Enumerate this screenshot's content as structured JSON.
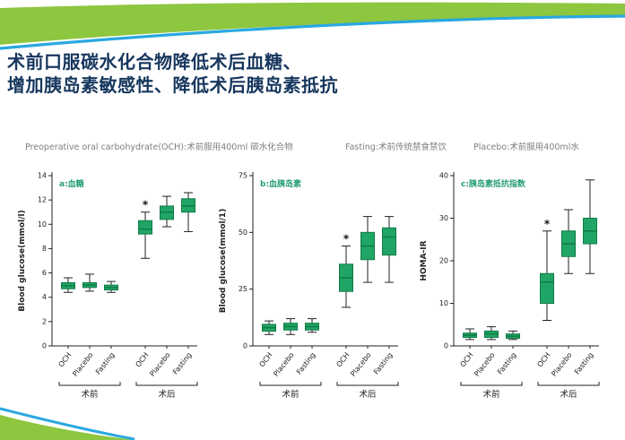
{
  "slide": {
    "title_line1": "术前口服碳水化合物降低术后血糖、",
    "title_line2": "增加胰岛素敏感性、降低术后胰岛素抵抗",
    "legend": {
      "och": "Preoperative oral carbohydrate(OCH):术前服用400ml 碳水化合物",
      "fasting": "Fasting:术前传统禁食禁饮",
      "placebo": "Placebo:术前服用400ml水"
    }
  },
  "colors": {
    "accent_green": "#8dc63f",
    "accent_blue": "#29a8e0",
    "title": "#17375e",
    "legend_text": "#7f7f7f",
    "box_fill": "#21a566",
    "box_stroke": "#0e7c44",
    "chart_label": "#2a9d7a",
    "axis": "#222222"
  },
  "chart_data": [
    {
      "type": "box",
      "label": "a:血糖",
      "ylabel": "Blood glucose(mmol/l)",
      "ylim": [
        0,
        14
      ],
      "yticks": [
        0,
        2,
        4,
        6,
        8,
        10,
        12,
        14
      ],
      "categories": [
        "OCH",
        "Placebo",
        "Fasting",
        "OCH",
        "Placebo",
        "Fasting"
      ],
      "groups": [
        {
          "label": "术前",
          "span": [
            0,
            2
          ]
        },
        {
          "label": "术后",
          "span": [
            3,
            5
          ]
        }
      ],
      "boxes": [
        {
          "low": 4.4,
          "q1": 4.7,
          "med": 4.95,
          "q3": 5.2,
          "high": 5.6
        },
        {
          "low": 4.5,
          "q1": 4.8,
          "med": 5.0,
          "q3": 5.2,
          "high": 5.9
        },
        {
          "low": 4.4,
          "q1": 4.6,
          "med": 4.8,
          "q3": 5.0,
          "high": 5.3
        },
        {
          "low": 7.2,
          "q1": 9.2,
          "med": 9.6,
          "q3": 10.3,
          "high": 11.0
        },
        {
          "low": 9.8,
          "q1": 10.4,
          "med": 11.0,
          "q3": 11.5,
          "high": 12.3
        },
        {
          "low": 9.4,
          "q1": 11.0,
          "med": 11.5,
          "q3": 12.1,
          "high": 12.6
        }
      ],
      "star": "*",
      "star_index": 3
    },
    {
      "type": "box",
      "label": "b:血胰岛素",
      "ylabel": "Blood glucose(mmol/1)",
      "ylim": [
        0,
        75
      ],
      "yticks": [
        0,
        25,
        50,
        75
      ],
      "categories": [
        "OCH",
        "Placebo",
        "Fasting",
        "OCH",
        "Placebo",
        "Fasting"
      ],
      "groups": [
        {
          "label": "术前",
          "span": [
            0,
            2
          ]
        },
        {
          "label": "术后",
          "span": [
            3,
            5
          ]
        }
      ],
      "boxes": [
        {
          "low": 5,
          "q1": 6.5,
          "med": 8,
          "q3": 9.5,
          "high": 11
        },
        {
          "low": 5,
          "q1": 7,
          "med": 8.5,
          "q3": 10,
          "high": 12
        },
        {
          "low": 6,
          "q1": 7,
          "med": 8.5,
          "q3": 10,
          "high": 12
        },
        {
          "low": 17,
          "q1": 24,
          "med": 30,
          "q3": 36,
          "high": 44
        },
        {
          "low": 28,
          "q1": 38,
          "med": 44,
          "q3": 50,
          "high": 57
        },
        {
          "low": 28,
          "q1": 40,
          "med": 48,
          "q3": 52,
          "high": 57
        }
      ],
      "star": "*",
      "star_index": 3
    },
    {
      "type": "box",
      "label": "c:胰岛素抵抗指数",
      "ylabel": "HOMA-IR",
      "ylim": [
        0,
        40
      ],
      "yticks": [
        0,
        10,
        20,
        30,
        40
      ],
      "categories": [
        "OCH",
        "Placebo",
        "Fasting",
        "OCH",
        "Placebo",
        "Fasting"
      ],
      "groups": [
        {
          "label": "术前",
          "span": [
            0,
            2
          ]
        },
        {
          "label": "术后",
          "span": [
            3,
            5
          ]
        }
      ],
      "boxes": [
        {
          "low": 1.5,
          "q1": 2,
          "med": 2.5,
          "q3": 3,
          "high": 4
        },
        {
          "low": 1.5,
          "q1": 2,
          "med": 2.8,
          "q3": 3.5,
          "high": 4.5
        },
        {
          "low": 1.5,
          "q1": 1.8,
          "med": 2.3,
          "q3": 2.8,
          "high": 3.5
        },
        {
          "low": 6,
          "q1": 10,
          "med": 15,
          "q3": 17,
          "high": 27
        },
        {
          "low": 17,
          "q1": 21,
          "med": 24,
          "q3": 27,
          "high": 32
        },
        {
          "low": 17,
          "q1": 24,
          "med": 27,
          "q3": 30,
          "high": 39
        }
      ],
      "star": "*",
      "star_index": 3
    }
  ]
}
